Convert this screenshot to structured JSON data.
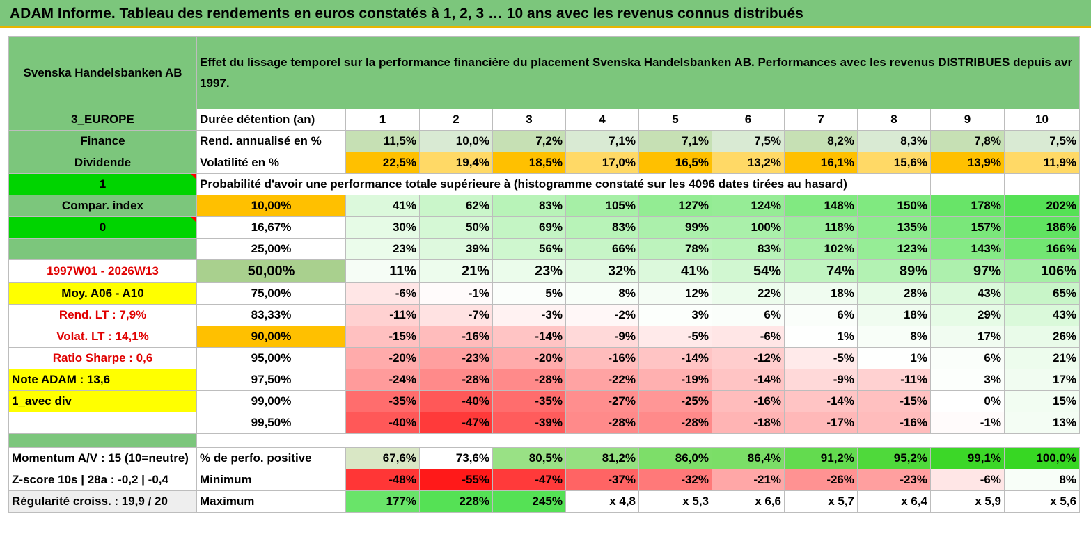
{
  "title": "ADAM Informe. Tableau des rendements en euros constatés à 1, 2, 3 … 10 ans avec les revenus connus distribués",
  "header": {
    "name": "Svenska Handelsbanken AB",
    "description": "Effet du lissage temporel sur la performance financière du placement Svenska Handelsbanken AB. Performances avec les revenus DISTRIBUES depuis avr 1997."
  },
  "left": {
    "region": "3_EUROPE",
    "sector": "Finance",
    "type": "Dividende",
    "selector1": "1",
    "compar": "Compar. index",
    "selector2": "0",
    "period": "1997W01 - 2026W13",
    "moy": "Moy. A06 - A10",
    "rend_lt": "Rend. LT :   7,9%",
    "volat_lt": "Volat. LT :   14,1%",
    "sharpe": "Ratio Sharpe :     0,6",
    "note": "Note ADAM : 13,6",
    "div": "1_avec div",
    "momentum": "Momentum A/V : 15 (10=neutre)",
    "zscore": "Z-score 10s | 28a : -0,2 | -0,4",
    "regularite": "Régularité croiss. : 19,9 / 20"
  },
  "years_label": "Durée détention (an)",
  "years": [
    "1",
    "2",
    "3",
    "4",
    "5",
    "6",
    "7",
    "8",
    "9",
    "10"
  ],
  "rend_label": "Rend. annualisé en %",
  "rend": [
    "11,5%",
    "10,0%",
    "7,2%",
    "7,1%",
    "7,1%",
    "7,5%",
    "8,2%",
    "8,3%",
    "7,8%",
    "7,5%"
  ],
  "vol_label": "Volatilité en %",
  "vol": [
    "22,5%",
    "19,4%",
    "18,5%",
    "17,0%",
    "16,5%",
    "13,2%",
    "16,1%",
    "15,6%",
    "13,9%",
    "11,9%"
  ],
  "prob_title": "Probabilité d'avoir une performance totale supérieure à (histogramme constaté sur les 4096 dates tirées au hasard)",
  "prob_rows": [
    {
      "p": "10,00%",
      "v": [
        "41%",
        "62%",
        "83%",
        "105%",
        "127%",
        "124%",
        "148%",
        "150%",
        "178%",
        "202%"
      ]
    },
    {
      "p": "16,67%",
      "v": [
        "30%",
        "50%",
        "69%",
        "83%",
        "99%",
        "100%",
        "118%",
        "135%",
        "157%",
        "186%"
      ]
    },
    {
      "p": "25,00%",
      "v": [
        "23%",
        "39%",
        "56%",
        "66%",
        "78%",
        "83%",
        "102%",
        "123%",
        "143%",
        "166%"
      ]
    },
    {
      "p": "50,00%",
      "v": [
        "11%",
        "21%",
        "23%",
        "32%",
        "41%",
        "54%",
        "74%",
        "89%",
        "97%",
        "106%"
      ]
    },
    {
      "p": "75,00%",
      "v": [
        "-6%",
        "-1%",
        "5%",
        "8%",
        "12%",
        "22%",
        "18%",
        "28%",
        "43%",
        "65%"
      ]
    },
    {
      "p": "83,33%",
      "v": [
        "-11%",
        "-7%",
        "-3%",
        "-2%",
        "3%",
        "6%",
        "6%",
        "18%",
        "29%",
        "43%"
      ]
    },
    {
      "p": "90,00%",
      "v": [
        "-15%",
        "-16%",
        "-14%",
        "-9%",
        "-5%",
        "-6%",
        "1%",
        "8%",
        "17%",
        "26%"
      ]
    },
    {
      "p": "95,00%",
      "v": [
        "-20%",
        "-23%",
        "-20%",
        "-16%",
        "-14%",
        "-12%",
        "-5%",
        "1%",
        "6%",
        "21%"
      ]
    },
    {
      "p": "97,50%",
      "v": [
        "-24%",
        "-28%",
        "-28%",
        "-22%",
        "-19%",
        "-14%",
        "-9%",
        "-11%",
        "3%",
        "17%"
      ]
    },
    {
      "p": "99,00%",
      "v": [
        "-35%",
        "-40%",
        "-35%",
        "-27%",
        "-25%",
        "-16%",
        "-14%",
        "-15%",
        "0%",
        "15%"
      ]
    },
    {
      "p": "99,50%",
      "v": [
        "-40%",
        "-47%",
        "-39%",
        "-28%",
        "-28%",
        "-18%",
        "-17%",
        "-16%",
        "-1%",
        "13%"
      ]
    }
  ],
  "pos_label": "% de perfo. positive",
  "pos": [
    "67,6%",
    "73,6%",
    "80,5%",
    "81,2%",
    "86,0%",
    "86,4%",
    "91,2%",
    "95,2%",
    "99,1%",
    "100,0%"
  ],
  "min_label": "Minimum",
  "min": [
    "-48%",
    "-55%",
    "-47%",
    "-37%",
    "-32%",
    "-21%",
    "-26%",
    "-23%",
    "-6%",
    "8%"
  ],
  "max_label": "Maximum",
  "max": [
    "177%",
    "228%",
    "245%",
    "x 4,8",
    "x 5,3",
    "x 6,6",
    "x 5,7",
    "x 6,4",
    "x 5,9",
    "x 5,6"
  ],
  "colors": {
    "green_header": "#7cc67c",
    "bright_green": "#00d400",
    "yellow": "#ffff00",
    "orange": "#ffc000",
    "red_text": "#e00000"
  }
}
